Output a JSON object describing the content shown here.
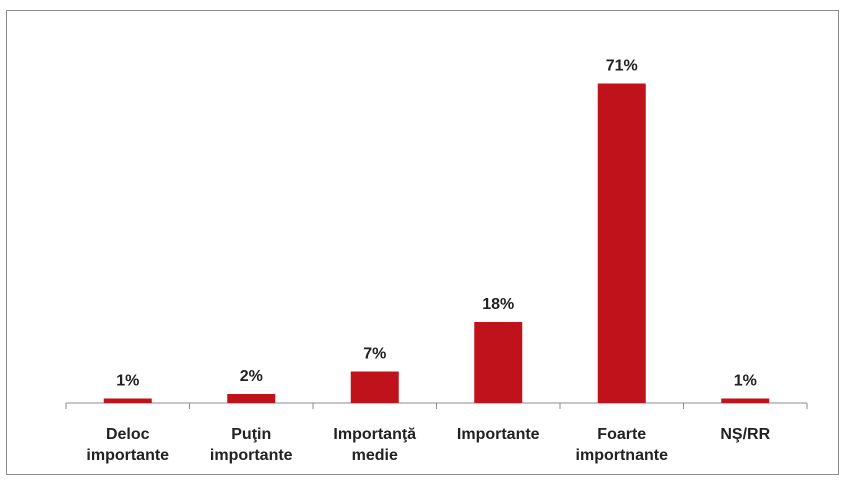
{
  "chart_data": {
    "type": "bar",
    "categories": [
      [
        "Deloc",
        "importante"
      ],
      [
        "Puţin",
        "importante"
      ],
      [
        "Importanţă",
        "medie"
      ],
      [
        "Importante"
      ],
      [
        "Foarte",
        "importnante"
      ],
      [
        "NŞ/RR"
      ]
    ],
    "values": [
      1,
      2,
      7,
      18,
      71,
      1
    ],
    "value_labels": [
      "1%",
      "2%",
      "7%",
      "18%",
      "71%",
      "1%"
    ],
    "title": "",
    "xlabel": "",
    "ylabel": "",
    "ylim": [
      0,
      80
    ],
    "grid": false,
    "legend": "none",
    "bar_color": "#C0121A"
  }
}
